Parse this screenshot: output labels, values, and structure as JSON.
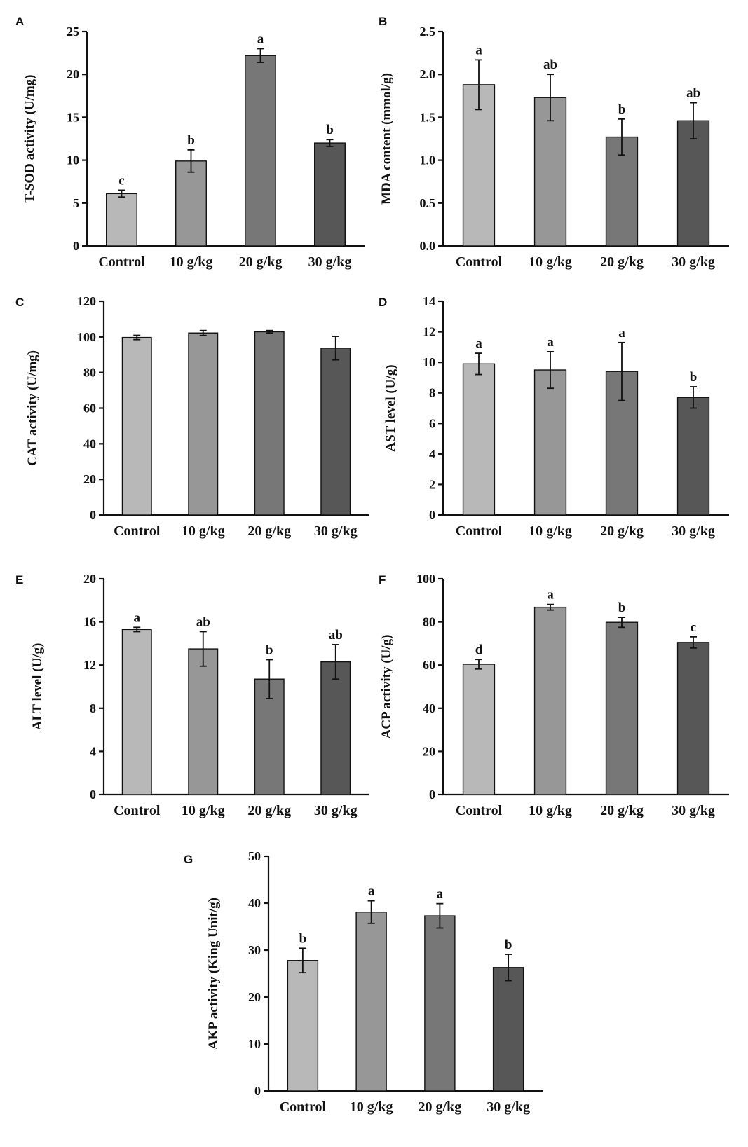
{
  "figure": {
    "bar_colors": [
      "#b8b8b8",
      "#979797",
      "#777777",
      "#575757"
    ]
  },
  "chart_data": [
    {
      "panel": "A",
      "type": "bar",
      "categories": [
        "Control",
        "10 g/kg",
        "20 g/kg",
        "30 g/kg"
      ],
      "values": [
        6.1,
        9.9,
        22.2,
        12.0
      ],
      "errors": [
        0.4,
        1.3,
        0.8,
        0.4
      ],
      "labels": [
        "c",
        "b",
        "a",
        "b"
      ],
      "ylabel": "T-SOD activity (U/mg)",
      "ylim": [
        0,
        25
      ],
      "yticks": [
        0,
        5,
        10,
        15,
        20,
        25
      ],
      "ytick_labels": [
        "0",
        "5",
        "10",
        "15",
        "20",
        "25"
      ]
    },
    {
      "panel": "B",
      "type": "bar",
      "categories": [
        "Control",
        "10 g/kg",
        "20 g/kg",
        "30 g/kg"
      ],
      "values": [
        1.88,
        1.73,
        1.27,
        1.46
      ],
      "errors": [
        0.29,
        0.27,
        0.21,
        0.21
      ],
      "labels": [
        "a",
        "ab",
        "b",
        "ab"
      ],
      "ylabel": "MDA content (mmol/g)",
      "ylim": [
        0,
        2.5
      ],
      "yticks": [
        0,
        0.5,
        1.0,
        1.5,
        2.0,
        2.5
      ],
      "ytick_labels": [
        "0.0",
        "0.5",
        "1.0",
        "1.5",
        "2.0",
        "2.5"
      ]
    },
    {
      "panel": "C",
      "type": "bar",
      "categories": [
        "Control",
        "10 g/kg",
        "20 g/kg",
        "30 g/kg"
      ],
      "values": [
        99.7,
        102.2,
        102.9,
        93.7
      ],
      "errors": [
        1.2,
        1.4,
        0.7,
        6.6
      ],
      "labels": [
        "",
        "",
        "",
        ""
      ],
      "ylabel": "CAT activity (U/mg)",
      "ylim": [
        0,
        120
      ],
      "yticks": [
        0,
        20,
        40,
        60,
        80,
        100,
        120
      ],
      "ytick_labels": [
        "0",
        "20",
        "40",
        "60",
        "80",
        "100",
        "120"
      ]
    },
    {
      "panel": "D",
      "type": "bar",
      "categories": [
        "Control",
        "10 g/kg",
        "20 g/kg",
        "30 g/kg"
      ],
      "values": [
        9.9,
        9.5,
        9.4,
        7.7
      ],
      "errors": [
        0.7,
        1.2,
        1.9,
        0.7
      ],
      "labels": [
        "a",
        "a",
        "a",
        "b"
      ],
      "ylabel": "AST level (U/g)",
      "ylim": [
        0,
        14
      ],
      "yticks": [
        0,
        2,
        4,
        6,
        8,
        10,
        12,
        14
      ],
      "ytick_labels": [
        "0",
        "2",
        "4",
        "6",
        "8",
        "10",
        "12",
        "14"
      ]
    },
    {
      "panel": "E",
      "type": "bar",
      "categories": [
        "Control",
        "10 g/kg",
        "20 g/kg",
        "30 g/kg"
      ],
      "values": [
        15.3,
        13.5,
        10.7,
        12.3
      ],
      "errors": [
        0.2,
        1.6,
        1.8,
        1.6
      ],
      "labels": [
        "a",
        "ab",
        "b",
        "ab"
      ],
      "ylabel": "ALT level (U/g)",
      "ylim": [
        0,
        20
      ],
      "yticks": [
        0,
        4,
        8,
        12,
        16,
        20
      ],
      "ytick_labels": [
        "0",
        "4",
        "8",
        "12",
        "16",
        "20"
      ]
    },
    {
      "panel": "F",
      "type": "bar",
      "categories": [
        "Control",
        "10 g/kg",
        "20 g/kg",
        "30 g/kg"
      ],
      "values": [
        60.4,
        86.8,
        79.8,
        70.5
      ],
      "errors": [
        2.2,
        1.3,
        2.3,
        2.6
      ],
      "labels": [
        "d",
        "a",
        "b",
        "c"
      ],
      "ylabel": "ACP activity (U/g)",
      "ylim": [
        0,
        100
      ],
      "yticks": [
        0,
        20,
        40,
        60,
        80,
        100
      ],
      "ytick_labels": [
        "0",
        "20",
        "40",
        "60",
        "80",
        "100"
      ]
    },
    {
      "panel": "G",
      "type": "bar",
      "categories": [
        "Control",
        "10 g/kg",
        "20 g/kg",
        "30 g/kg"
      ],
      "values": [
        27.8,
        38.1,
        37.3,
        26.3
      ],
      "errors": [
        2.6,
        2.4,
        2.6,
        2.8
      ],
      "labels": [
        "b",
        "a",
        "a",
        "b"
      ],
      "ylabel": "AKP activity (King Unit/g)",
      "ylim": [
        0,
        50
      ],
      "yticks": [
        0,
        10,
        20,
        30,
        40,
        50
      ],
      "ytick_labels": [
        "0",
        "10",
        "20",
        "30",
        "40",
        "50"
      ]
    }
  ]
}
